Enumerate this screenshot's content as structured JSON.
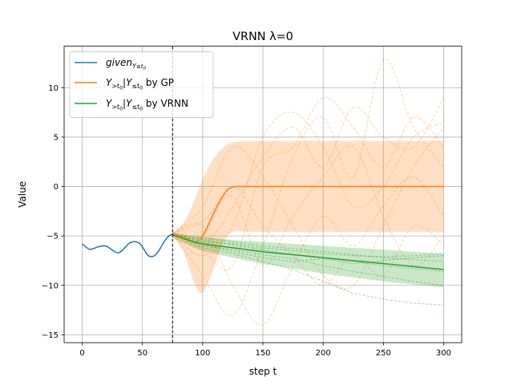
{
  "chart_data": {
    "type": "line",
    "title": "VRNN λ=0",
    "xlabel": "step t",
    "ylabel": "Value",
    "xlim": [
      -15,
      315
    ],
    "ylim": [
      -15.8,
      14.2
    ],
    "xticks": [
      0,
      50,
      100,
      150,
      200,
      250,
      300
    ],
    "yticks": [
      -15,
      -10,
      -5,
      0,
      5,
      10
    ],
    "grid": true,
    "legend_position": "top-left",
    "vline": {
      "x": 75,
      "style": "dashed",
      "color": "#000000"
    },
    "colors": {
      "given": "#1f77b4",
      "gp": "#ff7f0e",
      "vrnn": "#2ca02c"
    },
    "series": [
      {
        "name": "givenY≤t0",
        "legend_main": "given",
        "legend_sub": "Y≤t0",
        "color": "#1f77b4",
        "x": [
          0,
          3,
          6,
          9,
          12,
          15,
          18,
          21,
          24,
          27,
          30,
          33,
          36,
          39,
          42,
          45,
          48,
          51,
          54,
          57,
          60,
          63,
          66,
          69,
          72,
          75
        ],
        "y": [
          -5.8,
          -6.1,
          -6.35,
          -6.3,
          -6.15,
          -6.05,
          -6.0,
          -6.1,
          -6.35,
          -6.6,
          -6.7,
          -6.5,
          -6.1,
          -5.75,
          -5.6,
          -5.6,
          -5.8,
          -6.3,
          -6.9,
          -7.1,
          -7.0,
          -6.6,
          -6.0,
          -5.4,
          -5.0,
          -4.8
        ]
      },
      {
        "name": "Y>t0|Y≤t0 by GP",
        "legend_suffix": "by GP",
        "color": "#ff7f0e",
        "x": [
          75,
          80,
          85,
          90,
          95,
          100,
          105,
          110,
          115,
          120,
          125,
          130,
          140,
          150,
          175,
          200,
          225,
          250,
          275,
          300
        ],
        "y": [
          -4.8,
          -5.0,
          -5.2,
          -5.5,
          -5.6,
          -5.0,
          -3.8,
          -2.5,
          -1.3,
          -0.4,
          -0.05,
          0,
          0,
          0,
          0,
          0,
          0,
          0,
          0,
          0
        ],
        "band_upper": [
          -4.6,
          -4.2,
          -3.5,
          -2.3,
          -0.8,
          0.7,
          2.0,
          3.0,
          3.7,
          4.2,
          4.45,
          4.55,
          4.6,
          4.6,
          4.6,
          4.6,
          4.6,
          4.6,
          4.6,
          4.6
        ],
        "band_lower": [
          -5.0,
          -5.8,
          -6.9,
          -8.7,
          -10.4,
          -10.7,
          -9.6,
          -8.0,
          -6.3,
          -5.0,
          -4.6,
          -4.55,
          -4.6,
          -4.6,
          -4.6,
          -4.6,
          -4.6,
          -4.6,
          -4.6,
          -4.6
        ]
      },
      {
        "name": "Y>t0|Y≤t0 by VRNN",
        "legend_suffix": "by VRNN",
        "color": "#2ca02c",
        "x": [
          75,
          90,
          100,
          125,
          150,
          175,
          200,
          225,
          250,
          275,
          300
        ],
        "y": [
          -4.9,
          -5.5,
          -5.8,
          -6.2,
          -6.6,
          -6.9,
          -7.2,
          -7.5,
          -7.8,
          -8.1,
          -8.4
        ],
        "band_upper": [
          -4.6,
          -5.0,
          -5.1,
          -5.4,
          -5.6,
          -5.8,
          -6.0,
          -6.2,
          -6.4,
          -6.6,
          -6.8
        ],
        "band_lower": [
          -5.2,
          -6.0,
          -6.5,
          -7.2,
          -7.8,
          -8.3,
          -8.8,
          -9.2,
          -9.6,
          -9.9,
          -10.2
        ]
      }
    ],
    "sample_paths": {
      "gp": [
        {
          "x": [
            75,
            100,
            125,
            150,
            175,
            200,
            225,
            250,
            275,
            300
          ],
          "y": [
            -4.8,
            -6.0,
            -2.0,
            3.0,
            6.0,
            2.0,
            8.0,
            5.0,
            4.0,
            9.0
          ]
        },
        {
          "x": [
            75,
            100,
            125,
            150,
            175,
            200,
            225,
            250,
            275,
            300
          ],
          "y": [
            -4.8,
            -9.0,
            -13.0,
            -6.0,
            3.0,
            7.0,
            1.0,
            12.8,
            6.0,
            2.0
          ]
        },
        {
          "x": [
            75,
            100,
            125,
            150,
            175,
            200,
            225,
            250,
            275,
            300
          ],
          "y": [
            -4.8,
            -4.0,
            -10.0,
            -14.0,
            -8.0,
            -3.0,
            -6.0,
            -2.0,
            1.0,
            -3.0
          ]
        },
        {
          "x": [
            75,
            100,
            125,
            150,
            175,
            200,
            225,
            250,
            275,
            300
          ],
          "y": [
            -4.8,
            -2.0,
            4.0,
            1.0,
            -4.0,
            -9.0,
            -10.0,
            -4.0,
            2.0,
            6.0
          ]
        },
        {
          "x": [
            75,
            100,
            125,
            150,
            175,
            200,
            225,
            250,
            275,
            300
          ],
          "y": [
            -4.8,
            -7.0,
            -4.0,
            5.0,
            7.5,
            4.0,
            -2.0,
            0.0,
            5.0,
            6.5
          ]
        },
        {
          "x": [
            75,
            100,
            125,
            150,
            175,
            200,
            225,
            250,
            275,
            300
          ],
          "y": [
            -4.8,
            -5.0,
            0.0,
            -4.0,
            -7.0,
            -10.0,
            -7.0,
            -9.0,
            -4.0,
            -6.0
          ]
        },
        {
          "x": [
            75,
            100,
            125,
            150,
            175,
            200,
            225,
            250,
            275,
            300
          ],
          "y": [
            -4.8,
            -6.5,
            -8.0,
            2.0,
            4.0,
            9.0,
            6.0,
            2.0,
            7.0,
            4.0
          ]
        },
        {
          "x": [
            75,
            100,
            125,
            150,
            175,
            200,
            225,
            250,
            275,
            300
          ],
          "y": [
            -4.8,
            -3.5,
            -1.0,
            -8.0,
            -3.0,
            1.0,
            4.0,
            -3.0,
            -8.0,
            -5.0
          ]
        }
      ],
      "vrnn": [
        {
          "x": [
            75,
            100,
            125,
            150,
            175,
            200,
            225,
            250,
            275,
            300
          ],
          "y": [
            -4.8,
            -5.6,
            -5.8,
            -6.2,
            -6.5,
            -6.8,
            -7.0,
            -7.1,
            -7.0,
            -6.8
          ]
        },
        {
          "x": [
            75,
            100,
            125,
            150,
            175,
            200,
            225,
            250,
            275,
            300
          ],
          "y": [
            -4.8,
            -6.2,
            -6.8,
            -7.6,
            -8.4,
            -9.6,
            -10.8,
            -11.4,
            -11.8,
            -12.0
          ]
        },
        {
          "x": [
            75,
            100,
            125,
            150,
            175,
            200,
            225,
            250,
            275,
            300
          ],
          "y": [
            -4.8,
            -5.4,
            -5.9,
            -6.4,
            -6.9,
            -7.2,
            -7.6,
            -8.0,
            -8.3,
            -8.6
          ]
        },
        {
          "x": [
            75,
            100,
            125,
            150,
            175,
            200,
            225,
            250,
            275,
            300
          ],
          "y": [
            -4.8,
            -6.0,
            -6.4,
            -6.9,
            -7.3,
            -8.0,
            -8.6,
            -9.1,
            -9.6,
            -10.0
          ]
        },
        {
          "x": [
            75,
            100,
            125,
            150,
            175,
            200,
            225,
            250,
            275,
            300
          ],
          "y": [
            -4.8,
            -5.2,
            -5.6,
            -6.0,
            -6.3,
            -6.6,
            -6.9,
            -7.2,
            -7.4,
            -7.6
          ]
        },
        {
          "x": [
            75,
            100,
            125,
            150,
            175,
            200,
            225,
            250,
            275,
            300
          ],
          "y": [
            -4.8,
            -5.8,
            -6.6,
            -7.2,
            -7.6,
            -7.3,
            -7.8,
            -7.5,
            -7.2,
            -7.0
          ]
        }
      ]
    }
  }
}
